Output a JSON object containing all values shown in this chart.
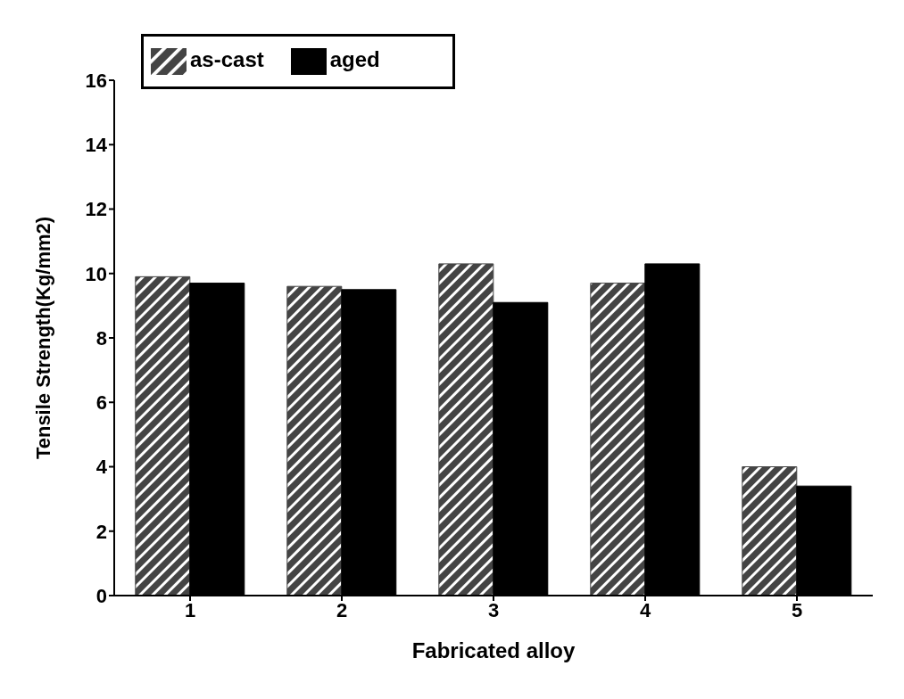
{
  "chart_data": {
    "type": "bar",
    "xlabel": "Fabricated alloy",
    "ylabel": "Tensile Strength(Kg/mm2)",
    "categories": [
      "1",
      "2",
      "3",
      "4",
      "5"
    ],
    "series": [
      {
        "name": "as-cast",
        "color": "#444444",
        "values": [
          9.9,
          9.6,
          10.3,
          9.7,
          4.0
        ]
      },
      {
        "name": "aged",
        "color": "#000000",
        "values": [
          9.7,
          9.5,
          9.1,
          10.3,
          3.4
        ]
      }
    ],
    "ylim": [
      0,
      16
    ],
    "yticks": [
      0,
      2,
      4,
      6,
      8,
      10,
      12,
      14,
      16
    ],
    "legend": "top left"
  }
}
